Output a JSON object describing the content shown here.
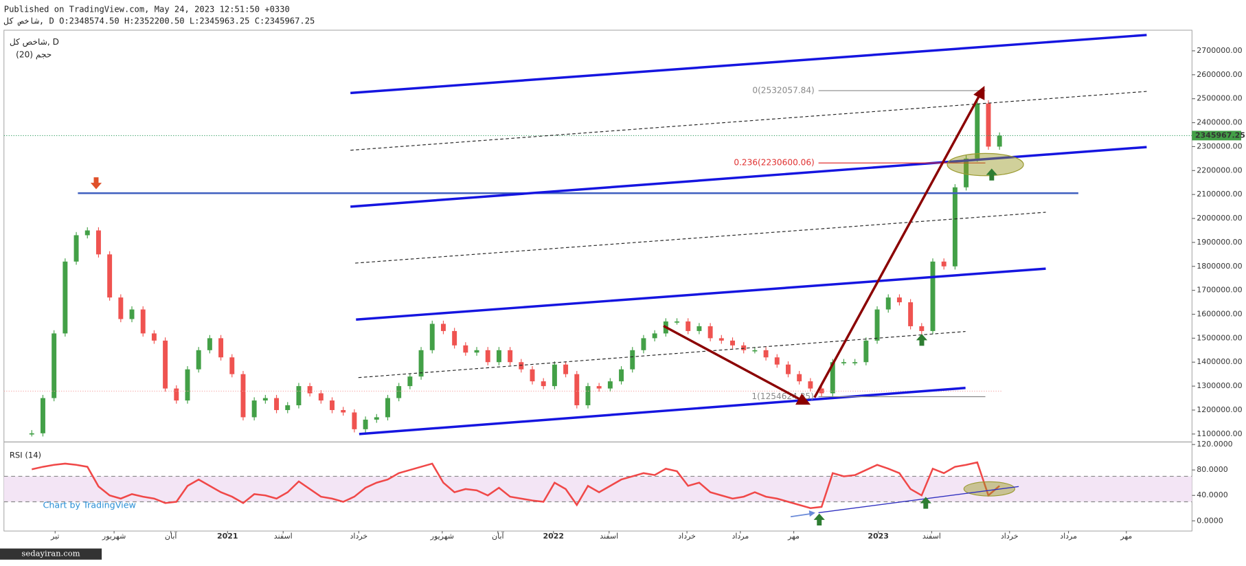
{
  "header": {
    "published": "Published on TradingView.com, May 24, 2023 12:51:50 +0330",
    "ohlc": "شاخص کل, D O:2348574.50 H:2352200.50 L:2345963.25 C:2345967.25"
  },
  "chart_data": [
    {
      "type": "candle",
      "title": "شاخص کل, D",
      "subtitle": "(20) حجم",
      "up_color": "#43a047",
      "down_color": "#ef5350",
      "grid": false,
      "x": [
        2,
        3,
        4,
        5,
        6,
        7,
        8,
        9,
        10,
        11,
        12,
        13,
        14,
        15,
        16,
        17,
        18,
        19,
        20,
        21,
        22,
        23,
        24,
        25,
        26,
        27,
        28,
        29,
        30,
        31,
        32,
        33,
        34,
        35,
        36,
        37,
        38,
        39,
        40,
        41,
        42,
        43,
        44,
        45,
        46,
        47,
        48,
        49,
        50,
        51,
        52,
        53,
        54,
        55,
        56,
        57,
        58,
        59,
        60,
        61,
        62,
        63,
        64,
        65,
        66,
        67,
        68,
        69,
        70,
        71,
        72,
        73,
        74,
        75,
        76,
        77,
        78,
        79,
        80,
        81,
        82,
        83,
        84,
        85,
        86,
        87,
        88,
        89
      ],
      "values": [
        1103000,
        1250000,
        1520000,
        1820000,
        1930000,
        1950000,
        1850000,
        1670000,
        1580000,
        1620000,
        1520000,
        1490000,
        1290000,
        1240000,
        1370000,
        1450000,
        1500000,
        1420000,
        1350000,
        1170000,
        1240000,
        1250000,
        1200000,
        1220000,
        1300000,
        1270000,
        1240000,
        1200000,
        1190000,
        1120000,
        1160000,
        1170000,
        1250000,
        1300000,
        1340000,
        1450000,
        1560000,
        1530000,
        1470000,
        1440000,
        1450000,
        1400000,
        1450000,
        1400000,
        1370000,
        1320000,
        1300000,
        1390000,
        1350000,
        1220000,
        1300000,
        1290000,
        1320000,
        1370000,
        1450000,
        1500000,
        1520000,
        1570000,
        1570000,
        1530000,
        1550000,
        1500000,
        1490000,
        1470000,
        1450000,
        1450000,
        1420000,
        1390000,
        1350000,
        1320000,
        1290000,
        1270000,
        1400000,
        1400000,
        1400000,
        1490000,
        1620000,
        1670000,
        1650000,
        1550000,
        1530000,
        1820000,
        1800000,
        2130000,
        2250000,
        2480000,
        2300000,
        2345967.25
      ],
      "xlim": [
        -0.5,
        106.3
      ],
      "ylim": [
        1070000,
        2786000
      ],
      "yticks": [
        {
          "value": 1100000,
          "label": "1100000.00"
        },
        {
          "value": 1200000,
          "label": "1200000.00"
        },
        {
          "value": 1300000,
          "label": "1300000.00"
        },
        {
          "value": 1400000,
          "label": "1400000.00"
        },
        {
          "value": 1500000,
          "label": "1500000.00"
        },
        {
          "value": 1600000,
          "label": "1600000.00"
        },
        {
          "value": 1700000,
          "label": "1700000.00"
        },
        {
          "value": 1800000,
          "label": "1800000.00"
        },
        {
          "value": 1900000,
          "label": "1900000.00"
        },
        {
          "value": 2000000,
          "label": "2000000.00"
        },
        {
          "value": 2100000,
          "label": "2100000.00"
        },
        {
          "value": 2200000,
          "label": "2200000.00"
        },
        {
          "value": 2300000,
          "label": "2300000.00"
        },
        {
          "value": 2400000,
          "label": "2400000.00"
        },
        {
          "value": 2500000,
          "label": "2500000.00"
        },
        {
          "value": 2600000,
          "label": "2600000.00"
        },
        {
          "value": 2700000,
          "label": "2700000.00"
        }
      ],
      "annotations": [
        "0(2532057.84)",
        "0.236(2230600.06)",
        "1(1254624.35)"
      ]
    },
    {
      "type": "line",
      "title": "RSI (14)",
      "color": "#f04848",
      "band": [
        30,
        70
      ],
      "band_color": "#f3e5f5",
      "grid": false,
      "x": [
        2,
        3,
        4,
        5,
        6,
        7,
        8,
        9,
        10,
        11,
        12,
        13,
        14,
        15,
        16,
        17,
        18,
        19,
        20,
        21,
        22,
        23,
        24,
        25,
        26,
        27,
        28,
        29,
        30,
        31,
        32,
        33,
        34,
        35,
        36,
        37,
        38,
        39,
        40,
        41,
        42,
        43,
        44,
        45,
        46,
        47,
        48,
        49,
        50,
        51,
        52,
        53,
        54,
        55,
        56,
        57,
        58,
        59,
        60,
        61,
        62,
        63,
        64,
        65,
        66,
        67,
        68,
        69,
        70,
        71,
        72,
        73,
        74,
        75,
        76,
        77,
        78,
        79,
        80,
        81,
        82,
        83,
        84,
        85,
        86,
        87,
        88,
        89
      ],
      "values": [
        81,
        85,
        88,
        90,
        88,
        85,
        54,
        40,
        35,
        42,
        38,
        35,
        28,
        30,
        55,
        65,
        55,
        45,
        38,
        28,
        42,
        40,
        35,
        45,
        62,
        50,
        38,
        35,
        30,
        38,
        52,
        60,
        65,
        75,
        80,
        85,
        90,
        60,
        45,
        50,
        48,
        40,
        52,
        38,
        35,
        32,
        30,
        60,
        50,
        25,
        55,
        45,
        55,
        65,
        70,
        75,
        72,
        82,
        78,
        55,
        60,
        45,
        40,
        35,
        38,
        45,
        38,
        35,
        30,
        25,
        20,
        22,
        75,
        70,
        72,
        80,
        88,
        82,
        75,
        50,
        40,
        82,
        75,
        85,
        88,
        92,
        40,
        55
      ],
      "xlim": [
        -0.5,
        106.3
      ],
      "ylim": [
        -16,
        124
      ],
      "yticks": [
        {
          "value": 0,
          "label": "0.0000"
        },
        {
          "value": 40,
          "label": "40.0000"
        },
        {
          "value": 80,
          "label": "80.0000"
        },
        {
          "value": 120,
          "label": "120.0000"
        }
      ],
      "xticks": [
        {
          "value": 4.1,
          "label": "تیر"
        },
        {
          "value": 9.4,
          "label": "شهریور"
        },
        {
          "value": 14.5,
          "label": "آبان"
        },
        {
          "value": 19.6,
          "label": "2021"
        },
        {
          "value": 24.6,
          "label": "اسفند"
        },
        {
          "value": 31.4,
          "label": "خرداد"
        },
        {
          "value": 38.9,
          "label": "شهریور"
        },
        {
          "value": 43.9,
          "label": "آبان"
        },
        {
          "value": 48.9,
          "label": "2022"
        },
        {
          "value": 53.9,
          "label": "اسفند"
        },
        {
          "value": 60.9,
          "label": "خرداد"
        },
        {
          "value": 65.7,
          "label": "مرداد"
        },
        {
          "value": 70.5,
          "label": "مهر"
        },
        {
          "value": 78.1,
          "label": "2023"
        },
        {
          "value": 82.9,
          "label": "اسفند"
        },
        {
          "value": 89.9,
          "label": "خرداد"
        },
        {
          "value": 95.2,
          "label": "مرداد"
        },
        {
          "value": 100.4,
          "label": "مهر"
        }
      ]
    }
  ],
  "footer": {
    "brand": "Chart by TradingView",
    "watermark": "sedayiran.com"
  }
}
